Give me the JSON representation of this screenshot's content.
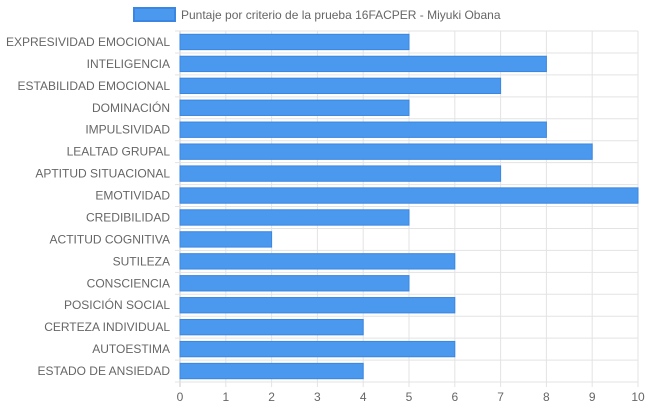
{
  "chart_data": {
    "type": "bar",
    "orientation": "horizontal",
    "legend": {
      "label": "Puntaje por criterio de la prueba 16FACPER - Miyuki Obana",
      "placement": "top-center"
    },
    "categories": [
      "EXPRESIVIDAD EMOCIONAL",
      "INTELIGENCIA",
      "ESTABILIDAD EMOCIONAL",
      "DOMINACIÓN",
      "IMPULSIVIDAD",
      "LEALTAD GRUPAL",
      "APTITUD SITUACIONAL",
      "EMOTIVIDAD",
      "CREDIBILIDAD",
      "ACTITUD COGNITIVA",
      "SUTILEZA",
      "CONSCIENCIA",
      "POSICIÓN SOCIAL",
      "CERTEZA INDIVIDUAL",
      "AUTOESTIMA",
      "ESTADO DE ANSIEDAD"
    ],
    "series": [
      {
        "name": "Puntaje por criterio de la prueba 16FACPER - Miyuki Obana",
        "values": [
          5,
          8,
          7,
          5,
          8,
          9,
          7,
          10,
          5,
          2,
          6,
          5,
          6,
          4,
          6,
          4
        ]
      }
    ],
    "xlim": [
      0,
      10
    ],
    "x_ticks": [
      "0",
      "1",
      "2",
      "3",
      "4",
      "5",
      "6",
      "7",
      "8",
      "9",
      "10"
    ],
    "grid": true,
    "colors": {
      "bar_fill": "#4a99ef",
      "bar_stroke": "#3a86e0",
      "grid": "#e3e3e3",
      "axis": "#c8c8c8",
      "text": "#666666"
    }
  }
}
